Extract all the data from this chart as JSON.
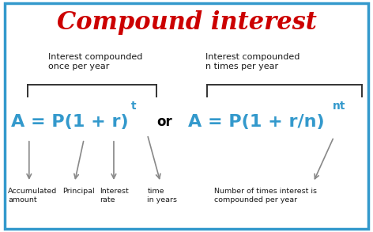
{
  "title": "Compound interest",
  "title_color": "#cc0000",
  "title_fontsize": 22,
  "background_color": "#ffffff",
  "border_color": "#3399cc",
  "border_linewidth": 2.5,
  "formula_color": "#3399cc",
  "or_color": "#000000",
  "label_color": "#1a1a1a",
  "bracket_color": "#333333",
  "arrow_color": "#888888",
  "desc_color": "#1a1a1a",
  "left_label": "Interest compounded\nonce per year",
  "right_label": "Interest compounded\nn times per year",
  "or_text": "or",
  "formula1_main": "A = P(1 + r)",
  "formula1_exp": "t",
  "formula2_main": "A = P(1 + r/n)",
  "formula2_exp": "nt"
}
